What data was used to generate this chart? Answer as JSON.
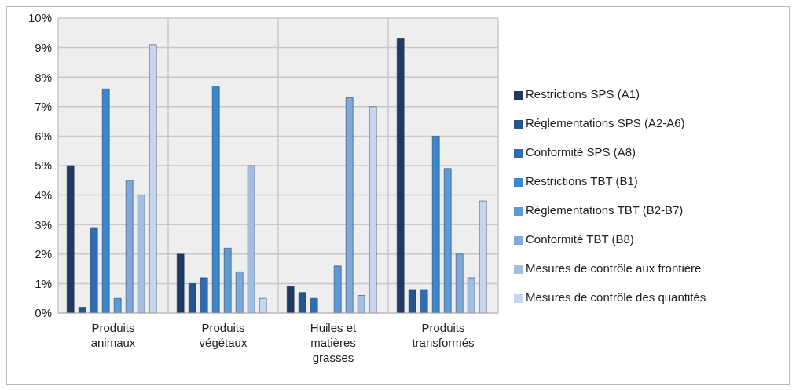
{
  "chart_data": {
    "type": "bar",
    "categories": [
      "Produits animaux",
      "Produits végétaux",
      "Huiles et matières grasses",
      "Produits transformés"
    ],
    "series": [
      {
        "name": "Restrictions SPS (A1)",
        "color": "#1f3864",
        "values": [
          5.0,
          2.0,
          0.9,
          9.3
        ]
      },
      {
        "name": "Réglementations SPS (A2-A6)",
        "color": "#25558f",
        "values": [
          0.2,
          1.0,
          0.7,
          0.8
        ]
      },
      {
        "name": "Conformité SPS (A8)",
        "color": "#2e6db4",
        "values": [
          2.9,
          1.2,
          0.5,
          0.8
        ]
      },
      {
        "name": "Restrictions TBT (B1)",
        "color": "#3a87d0",
        "values": [
          7.6,
          7.7,
          0,
          6.0
        ]
      },
      {
        "name": "Réglementations TBT (B2-B7)",
        "color": "#5b9bd5",
        "values": [
          0.5,
          2.2,
          1.6,
          4.9
        ]
      },
      {
        "name": "Conformité TBT (B8)",
        "color": "#7fa9d8",
        "values": [
          4.5,
          1.4,
          7.3,
          2.0
        ]
      },
      {
        "name": "Mesures de contrôle aux frontière",
        "color": "#a2bfe2",
        "values": [
          4.0,
          5.0,
          0.6,
          1.2
        ]
      },
      {
        "name": "Mesures de contrôle des quantités",
        "color": "#c5d6ee",
        "values": [
          9.1,
          0.5,
          7.0,
          3.8
        ]
      }
    ],
    "ylim": [
      0,
      10
    ],
    "yticks": [
      {
        "value": 0,
        "label": "0%"
      },
      {
        "value": 1,
        "label": "1%"
      },
      {
        "value": 2,
        "label": "2%"
      },
      {
        "value": 3,
        "label": "3%"
      },
      {
        "value": 4,
        "label": "4%"
      },
      {
        "value": 5,
        "label": "5%"
      },
      {
        "value": 6,
        "label": "6%"
      },
      {
        "value": 7,
        "label": "7%"
      },
      {
        "value": 8,
        "label": "8%"
      },
      {
        "value": 9,
        "label": "9%"
      },
      {
        "value": 10,
        "label": "10%"
      }
    ],
    "grid": true,
    "legend": "right"
  }
}
